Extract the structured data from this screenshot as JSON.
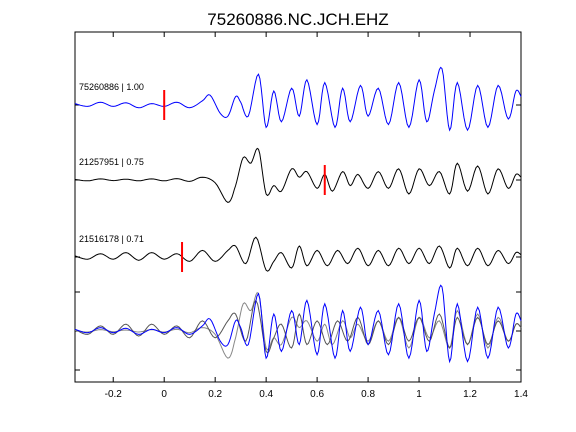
{
  "chart_data": {
    "type": "line",
    "title": "75260886.NC.JCH.EHZ",
    "xlabel": "",
    "ylabel": "",
    "xlim": [
      -0.35,
      1.4
    ],
    "xticks": [
      -0.2,
      0,
      0.2,
      0.4,
      0.6,
      0.8,
      1,
      1.2,
      1.4
    ],
    "xtick_labels": [
      "-0.2",
      "0",
      "0.2",
      "0.4",
      "0.6",
      "0.8",
      "1",
      "1.2",
      "1.4"
    ],
    "grid": false,
    "series": [
      {
        "name": "75260886 | 1.00",
        "color": "#0000ff",
        "pick_time": 0.0,
        "points": [
          [
            -0.35,
            0.05
          ],
          [
            -0.3,
            -0.05
          ],
          [
            -0.25,
            0.1
          ],
          [
            -0.2,
            -0.05
          ],
          [
            -0.15,
            0.08
          ],
          [
            -0.1,
            -0.1
          ],
          [
            -0.05,
            0.05
          ],
          [
            0,
            -0.05
          ],
          [
            0.05,
            0.1
          ],
          [
            0.1,
            -0.1
          ],
          [
            0.15,
            0.15
          ],
          [
            0.18,
            0.35
          ],
          [
            0.22,
            -0.3
          ],
          [
            0.25,
            -0.4
          ],
          [
            0.28,
            0.3
          ],
          [
            0.3,
            0.1
          ],
          [
            0.33,
            -0.4
          ],
          [
            0.37,
            1.1
          ],
          [
            0.4,
            -0.8
          ],
          [
            0.43,
            0.5
          ],
          [
            0.46,
            -0.6
          ],
          [
            0.5,
            0.6
          ],
          [
            0.53,
            -0.4
          ],
          [
            0.56,
            0.9
          ],
          [
            0.6,
            -0.7
          ],
          [
            0.63,
            0.8
          ],
          [
            0.67,
            -0.8
          ],
          [
            0.7,
            0.6
          ],
          [
            0.73,
            -0.6
          ],
          [
            0.77,
            0.7
          ],
          [
            0.8,
            -0.4
          ],
          [
            0.84,
            0.6
          ],
          [
            0.88,
            -0.7
          ],
          [
            0.92,
            0.8
          ],
          [
            0.96,
            -0.8
          ],
          [
            1,
            0.9
          ],
          [
            1.03,
            -0.6
          ],
          [
            1.06,
            0.5
          ],
          [
            1.09,
            1.3
          ],
          [
            1.12,
            -0.9
          ],
          [
            1.15,
            0.8
          ],
          [
            1.19,
            -0.9
          ],
          [
            1.23,
            0.7
          ],
          [
            1.27,
            -0.8
          ],
          [
            1.31,
            0.7
          ],
          [
            1.35,
            -0.5
          ],
          [
            1.38,
            0.5
          ],
          [
            1.4,
            0.3
          ]
        ]
      },
      {
        "name": "21257951 | 0.75",
        "color": "#000000",
        "pick_time": 0.63,
        "points": [
          [
            -0.35,
            0.02
          ],
          [
            -0.3,
            -0.03
          ],
          [
            -0.25,
            0.04
          ],
          [
            -0.2,
            -0.02
          ],
          [
            -0.15,
            0.03
          ],
          [
            -0.1,
            -0.03
          ],
          [
            -0.05,
            0.04
          ],
          [
            0,
            -0.03
          ],
          [
            0.05,
            0.05
          ],
          [
            0.1,
            -0.05
          ],
          [
            0.15,
            0.1
          ],
          [
            0.2,
            -0.1
          ],
          [
            0.25,
            -0.8
          ],
          [
            0.28,
            -0.2
          ],
          [
            0.31,
            0.8
          ],
          [
            0.34,
            0.6
          ],
          [
            0.37,
            1.1
          ],
          [
            0.4,
            -0.5
          ],
          [
            0.43,
            -0.2
          ],
          [
            0.46,
            -0.4
          ],
          [
            0.5,
            0.4
          ],
          [
            0.53,
            0.1
          ],
          [
            0.56,
            0.3
          ],
          [
            0.6,
            -0.3
          ],
          [
            0.63,
            0.2
          ],
          [
            0.66,
            -0.4
          ],
          [
            0.7,
            0.3
          ],
          [
            0.73,
            -0.2
          ],
          [
            0.76,
            0.2
          ],
          [
            0.8,
            -0.3
          ],
          [
            0.84,
            0.3
          ],
          [
            0.88,
            -0.3
          ],
          [
            0.92,
            0.4
          ],
          [
            0.96,
            -0.5
          ],
          [
            1,
            0.4
          ],
          [
            1.04,
            -0.2
          ],
          [
            1.08,
            0.3
          ],
          [
            1.12,
            -0.5
          ],
          [
            1.15,
            0.6
          ],
          [
            1.19,
            -0.4
          ],
          [
            1.23,
            0.5
          ],
          [
            1.27,
            -0.5
          ],
          [
            1.31,
            0.4
          ],
          [
            1.35,
            -0.3
          ],
          [
            1.38,
            0.2
          ],
          [
            1.4,
            0.1
          ]
        ]
      },
      {
        "name": "21516178 | 0.71",
        "color": "#000000",
        "pick_time": 0.07,
        "points": [
          [
            -0.35,
            0.05
          ],
          [
            -0.3,
            -0.1
          ],
          [
            -0.25,
            0.15
          ],
          [
            -0.2,
            -0.1
          ],
          [
            -0.15,
            0.2
          ],
          [
            -0.1,
            -0.15
          ],
          [
            -0.05,
            0.2
          ],
          [
            0,
            -0.1
          ],
          [
            0.05,
            0.15
          ],
          [
            0.1,
            -0.2
          ],
          [
            0.15,
            0.3
          ],
          [
            0.2,
            -0.2
          ],
          [
            0.25,
            0.3
          ],
          [
            0.28,
            0.5
          ],
          [
            0.32,
            -0.3
          ],
          [
            0.36,
            0.9
          ],
          [
            0.4,
            -0.6
          ],
          [
            0.43,
            -0.2
          ],
          [
            0.46,
            0.2
          ],
          [
            0.5,
            -0.5
          ],
          [
            0.53,
            0.5
          ],
          [
            0.56,
            -0.4
          ],
          [
            0.6,
            0.3
          ],
          [
            0.64,
            -0.4
          ],
          [
            0.68,
            0.3
          ],
          [
            0.72,
            -0.3
          ],
          [
            0.76,
            0.4
          ],
          [
            0.8,
            -0.4
          ],
          [
            0.84,
            0.3
          ],
          [
            0.88,
            -0.4
          ],
          [
            0.92,
            0.4
          ],
          [
            0.96,
            -0.3
          ],
          [
            1,
            0.4
          ],
          [
            1.04,
            -0.3
          ],
          [
            1.08,
            0.5
          ],
          [
            1.12,
            -0.5
          ],
          [
            1.15,
            0.4
          ],
          [
            1.19,
            -0.4
          ],
          [
            1.23,
            0.4
          ],
          [
            1.27,
            -0.4
          ],
          [
            1.31,
            0.3
          ],
          [
            1.35,
            -0.3
          ],
          [
            1.38,
            0.2
          ],
          [
            1.4,
            0.1
          ]
        ]
      }
    ]
  }
}
